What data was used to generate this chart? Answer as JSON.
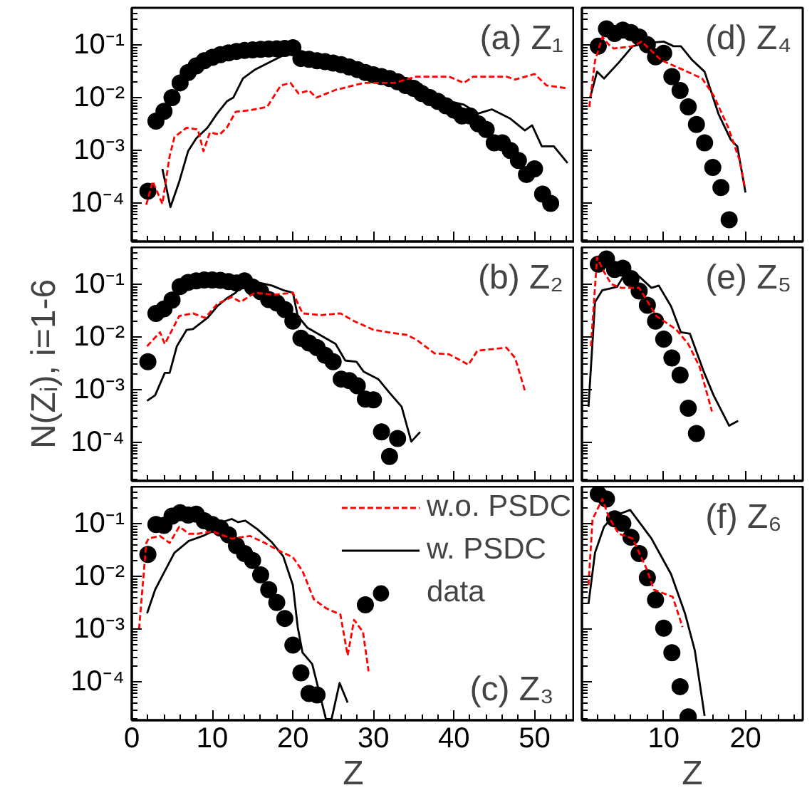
{
  "chart_data": [
    {
      "type": "line",
      "log": true,
      "grid": false,
      "tick_labels": "y",
      "xlim": [
        0,
        55
      ],
      "xticks": [
        0,
        10,
        20,
        30,
        40,
        50
      ],
      "ylim": [
        1.9e-05,
        0.5
      ],
      "yticks": [
        {
          "value": 0.1,
          "label": "10⁻¹"
        },
        {
          "value": 0.01,
          "label": "10⁻²"
        },
        {
          "value": 0.001,
          "label": "10⁻³"
        },
        {
          "value": 0.0001,
          "label": "10⁻⁴"
        }
      ],
      "annotations": [
        "(a) Z₁"
      ],
      "series": [
        {
          "color": "#ff0000",
          "line_style": "dashed",
          "x": [
            1.8,
            2.6,
            3.8,
            4.7,
            5.3,
            6.8,
            8.2,
            8.9,
            9.7,
            10.9,
            11.8,
            12.9,
            14.7,
            16.8,
            18.5,
            19.7,
            20.7,
            22,
            22.9,
            25.3,
            28.8,
            32.6,
            35.3,
            39.4,
            41.2,
            42.4,
            44.7,
            46.5,
            47.6,
            50,
            51.5,
            54.1
          ],
          "values": [
            9.4e-05,
            0.00026,
            9.8e-05,
            0.00078,
            0.0018,
            0.0027,
            0.0025,
            0.00097,
            0.0022,
            0.002,
            0.0027,
            0.0054,
            0.0058,
            0.0067,
            0.017,
            0.019,
            0.012,
            0.0137,
            0.01,
            0.014,
            0.019,
            0.019,
            0.025,
            0.025,
            0.019,
            0.025,
            0.025,
            0.025,
            0.022,
            0.028,
            0.017,
            0.015
          ]
        },
        {
          "color": "#000000",
          "line_style": "solid",
          "x": [
            3.8,
            4.8,
            5.9,
            7,
            8,
            9.4,
            10.6,
            11.8,
            12.6,
            13.8,
            15.3,
            17.6,
            18.8,
            20,
            22,
            26,
            30,
            32.4,
            35.3,
            35.9,
            37,
            38.8,
            41.2,
            43,
            44.7,
            47,
            48.8,
            49.7,
            50.9,
            52.4,
            54.1
          ],
          "values": [
            0.00045,
            8.5e-05,
            0.00026,
            0.00098,
            0.0017,
            0.0027,
            0.005,
            0.0085,
            0.01,
            0.023,
            0.034,
            0.051,
            0.063,
            0.085,
            0.05,
            0.04,
            0.027,
            0.019,
            0.017,
            0.018,
            0.012,
            0.009,
            0.0074,
            0.005,
            0.006,
            0.004,
            0.0024,
            0.003,
            0.0012,
            0.0012,
            0.00058
          ]
        },
        {
          "type": "scatter",
          "marker": "circle",
          "color": "#000000",
          "x": [
            2,
            3,
            4,
            5,
            6,
            7,
            8,
            9,
            10,
            11,
            12,
            13,
            14,
            15,
            16,
            17,
            18,
            19,
            20,
            21,
            22,
            23,
            24,
            25,
            26,
            27,
            28,
            29,
            30,
            31,
            32,
            33,
            34,
            35,
            36,
            37,
            38,
            39,
            40,
            41,
            42,
            43,
            44,
            45,
            46,
            47,
            48,
            49,
            50,
            51,
            52
          ],
          "values": [
            0.00017,
            0.0036,
            0.0055,
            0.01,
            0.019,
            0.03,
            0.04,
            0.05,
            0.058,
            0.065,
            0.07,
            0.075,
            0.078,
            0.08,
            0.082,
            0.083,
            0.084,
            0.085,
            0.088,
            0.055,
            0.053,
            0.05,
            0.048,
            0.045,
            0.042,
            0.038,
            0.034,
            0.03,
            0.027,
            0.025,
            0.023,
            0.02,
            0.017,
            0.015,
            0.012,
            0.01,
            0.0085,
            0.007,
            0.0058,
            0.0045,
            0.0045,
            0.0032,
            0.0025,
            0.0014,
            0.0014,
            0.001,
            0.00065,
            0.00035,
            0.00045,
            0.00015,
            0.0001
          ]
        }
      ]
    },
    {
      "type": "line",
      "log": true,
      "grid": false,
      "tick_labels": false,
      "xlim": [
        0,
        27
      ],
      "xticks": [
        10,
        20
      ],
      "ylim": [
        1.9e-05,
        0.5
      ],
      "yticks": [
        0.1,
        0.01,
        0.001,
        0.0001
      ],
      "annotations": [
        "(d) Z₄"
      ],
      "series": [
        {
          "color": "#ff0000",
          "line_style": "dashed",
          "x": [
            0.9,
            1.6,
            2.5,
            3.3,
            3.9,
            6.2,
            7.3,
            9.7,
            12.3,
            14.7,
            16.1,
            17.9,
            19.3,
            19.9
          ],
          "values": [
            0.0067,
            0.05,
            0.14,
            0.1,
            0.085,
            0.094,
            0.115,
            0.051,
            0.034,
            0.023,
            0.011,
            0.0027,
            0.00064,
            0.00021
          ]
        },
        {
          "color": "#000000",
          "line_style": "solid",
          "x": [
            1,
            1.85,
            2.7,
            4.5,
            6.2,
            7.9,
            10,
            11.2,
            12.1,
            13.5,
            15,
            16.7,
            18.2,
            19,
            20
          ],
          "values": [
            0.01,
            0.031,
            0.023,
            0.046,
            0.094,
            0.108,
            0.115,
            0.094,
            0.094,
            0.051,
            0.031,
            0.0049,
            0.0016,
            0.0012,
            0.00016
          ]
        },
        {
          "type": "scatter",
          "marker": "circle",
          "color": "#000000",
          "x": [
            2,
            3,
            4,
            5,
            6,
            7,
            8,
            9,
            10,
            11,
            12,
            13,
            14,
            15,
            16,
            17,
            18
          ],
          "values": [
            0.094,
            0.2,
            0.163,
            0.19,
            0.17,
            0.14,
            0.1,
            0.059,
            0.069,
            0.025,
            0.0137,
            0.0067,
            0.0031,
            0.0014,
            0.00048,
            0.0002,
            4.9e-05
          ]
        }
      ]
    },
    {
      "type": "line",
      "log": true,
      "grid": false,
      "tick_labels": "y",
      "xlim": [
        0,
        55
      ],
      "xticks": [
        0,
        10,
        20,
        30,
        40,
        50
      ],
      "ylim": [
        1.9e-05,
        0.5
      ],
      "yticks": [
        {
          "value": 0.1,
          "label": "10⁻¹"
        },
        {
          "value": 0.01,
          "label": "10⁻²"
        },
        {
          "value": 0.001,
          "label": "10⁻³"
        },
        {
          "value": 0.0001,
          "label": "10⁻⁴"
        }
      ],
      "ylabel": "N(Zᵢ), i=1-6",
      "annotations": [
        "(b) Z₂"
      ],
      "series": [
        {
          "color": "#ff0000",
          "line_style": "dashed",
          "x": [
            1.9,
            3.5,
            4.1,
            5.9,
            7.6,
            9.1,
            10.6,
            12.4,
            13.5,
            15.3,
            17.6,
            20,
            21.2,
            23.5,
            25.9,
            27.6,
            30,
            31.8,
            34.1,
            35.3,
            37.6,
            39.4,
            41.8,
            42.9,
            46.5,
            47.6,
            48.8
          ],
          "values": [
            0.0067,
            0.0123,
            0.0074,
            0.025,
            0.028,
            0.023,
            0.042,
            0.057,
            0.046,
            0.069,
            0.063,
            0.069,
            0.028,
            0.026,
            0.028,
            0.02,
            0.0137,
            0.0123,
            0.011,
            0.009,
            0.0049,
            0.0047,
            0.003,
            0.0055,
            0.0063,
            0.004,
            0.00097
          ]
        },
        {
          "color": "#000000",
          "line_style": "solid",
          "x": [
            1.9,
            2.9,
            4.1,
            4.7,
            5.6,
            6.8,
            7.6,
            9.4,
            10.6,
            11.8,
            12.9,
            14.1,
            15.6,
            17.4,
            18.8,
            20,
            20.6,
            21.8,
            23.8,
            25.3,
            26.5,
            27.9,
            28.8,
            30.6,
            32,
            33.5,
            34.7,
            35.8
          ],
          "values": [
            0.00062,
            0.00079,
            0.0021,
            0.0021,
            0.0067,
            0.0136,
            0.0142,
            0.023,
            0.038,
            0.054,
            0.069,
            0.108,
            0.108,
            0.094,
            0.077,
            0.069,
            0.025,
            0.015,
            0.01,
            0.0074,
            0.0036,
            0.0034,
            0.0022,
            0.0016,
            0.00088,
            0.00048,
            0.000105,
            0.00016
          ]
        },
        {
          "type": "scatter",
          "marker": "circle",
          "color": "#000000",
          "x": [
            2,
            3,
            4,
            5,
            6,
            7,
            8,
            9,
            10,
            11,
            12,
            13,
            14,
            15,
            16,
            17,
            18,
            19,
            20,
            21,
            22,
            23,
            24,
            25,
            26,
            27,
            28,
            29,
            30,
            31,
            32,
            33
          ],
          "values": [
            0.0034,
            0.028,
            0.034,
            0.05,
            0.09,
            0.108,
            0.115,
            0.12,
            0.12,
            0.118,
            0.112,
            0.105,
            0.115,
            0.088,
            0.072,
            0.051,
            0.044,
            0.033,
            0.02,
            0.0095,
            0.0077,
            0.0063,
            0.0045,
            0.0034,
            0.0016,
            0.0015,
            0.0012,
            0.00067,
            0.00065,
            0.00016,
            5.5e-05,
            0.00012
          ]
        }
      ]
    },
    {
      "type": "line",
      "log": true,
      "grid": false,
      "tick_labels": false,
      "xlim": [
        0,
        27
      ],
      "xticks": [
        10,
        20
      ],
      "ylim": [
        1.9e-05,
        0.5
      ],
      "yticks": [
        0.1,
        0.01,
        0.001,
        0.0001
      ],
      "annotations": [
        "(e) Z₅"
      ],
      "series": [
        {
          "color": "#ff0000",
          "line_style": "dashed",
          "x": [
            1.1,
            1.85,
            2.7,
            3.6,
            4.8,
            7,
            9.1,
            11.5,
            13,
            14.4,
            15.9
          ],
          "values": [
            0.0067,
            0.32,
            0.17,
            0.1,
            0.085,
            0.085,
            0.025,
            0.014,
            0.0074,
            0.0027,
            0.00039
          ]
        },
        {
          "color": "#000000",
          "line_style": "solid",
          "x": [
            0.8,
            1.6,
            2.5,
            3.3,
            4.3,
            5.3,
            7,
            8.5,
            9.4,
            10.9,
            12.1,
            13.2,
            14.9,
            16.1,
            18,
            19.1
          ],
          "values": [
            0.00048,
            0.046,
            0.077,
            0.082,
            0.089,
            0.16,
            0.14,
            0.085,
            0.094,
            0.038,
            0.0123,
            0.0116,
            0.0022,
            0.00079,
            0.00021,
            0.00026
          ]
        },
        {
          "type": "scatter",
          "marker": "circle",
          "color": "#000000",
          "x": [
            2,
            3,
            4,
            5,
            6,
            7,
            8,
            9,
            10,
            11,
            12,
            13,
            14
          ],
          "values": [
            0.24,
            0.3,
            0.19,
            0.2,
            0.128,
            0.074,
            0.04,
            0.02,
            0.0091,
            0.004,
            0.0019,
            0.00045,
            0.00015
          ]
        }
      ]
    },
    {
      "type": "line",
      "log": true,
      "grid": false,
      "legend": "top right",
      "xlim": [
        0,
        55
      ],
      "xticks": [
        0,
        10,
        20,
        30,
        40,
        50
      ],
      "ylim": [
        1.9e-05,
        0.5
      ],
      "yticks": [
        {
          "value": 0.1,
          "label": "10⁻¹"
        },
        {
          "value": 0.01,
          "label": "10⁻²"
        },
        {
          "value": 0.001,
          "label": "10⁻³"
        },
        {
          "value": 0.0001,
          "label": "10⁻⁴"
        }
      ],
      "xlabel": "Z",
      "annotations": [
        "(c)  Z₃"
      ],
      "series": [
        {
          "name": "w.o. PSDC",
          "color": "#ff0000",
          "line_style": "dashed",
          "x": [
            0.9,
            1.8,
            2.1,
            3.5,
            4.7,
            5.9,
            7.1,
            8.2,
            10,
            12.4,
            14.7,
            16.5,
            18.2,
            20,
            21.2,
            22.6,
            24.1,
            25.9,
            26.8,
            27.6,
            28.7,
            29.4
          ],
          "values": [
            0.001,
            0.043,
            0.052,
            0.058,
            0.043,
            0.087,
            0.064,
            0.064,
            0.071,
            0.052,
            0.058,
            0.043,
            0.031,
            0.023,
            0.0126,
            0.0037,
            0.0025,
            0.0019,
            0.00032,
            0.0015,
            0.00089,
            0.00016
          ]
        },
        {
          "name": "w. PSDC",
          "color": "#000000",
          "line_style": "solid",
          "x": [
            1.9,
            2.9,
            3.8,
            5.3,
            7.1,
            8.8,
            10,
            11.2,
            12.4,
            13.2,
            14.1,
            15.6,
            17.4,
            18.8,
            20,
            20.6,
            21.2,
            22.4,
            23.5,
            24.1,
            24.8,
            25.8,
            26.8
          ],
          "values": [
            0.002,
            0.0056,
            0.0103,
            0.028,
            0.047,
            0.058,
            0.071,
            0.106,
            0.122,
            0.106,
            0.113,
            0.078,
            0.044,
            0.024,
            0.0068,
            0.0011,
            0.00036,
            0.00022,
            4.7e-05,
            2e-05,
            2e-05,
            9.6e-05,
            4.1e-05
          ]
        },
        {
          "name": "data",
          "type": "scatter",
          "marker": "circle",
          "color": "#000000",
          "x": [
            2,
            3,
            4,
            5,
            6,
            7,
            8,
            9,
            10,
            11,
            12,
            13,
            14,
            15,
            16,
            17,
            18,
            19,
            20,
            21,
            22,
            23,
            29
          ],
          "values": [
            0.026,
            0.096,
            0.092,
            0.138,
            0.16,
            0.144,
            0.15,
            0.113,
            0.096,
            0.082,
            0.061,
            0.038,
            0.027,
            0.02,
            0.0107,
            0.0056,
            0.0032,
            0.0016,
            0.0005,
            0.00015,
            6.1e-05,
            5.7e-05,
            0.0029
          ]
        }
      ]
    },
    {
      "type": "line",
      "log": true,
      "grid": false,
      "tick_labels": "x",
      "xlim": [
        0,
        27
      ],
      "xticks": [
        10,
        20
      ],
      "ylim": [
        1.9e-05,
        0.5
      ],
      "yticks": [
        0.1,
        0.01,
        0.001,
        0.0001
      ],
      "xlabel": "Z",
      "annotations": [
        "(f)  Z₆"
      ],
      "series": [
        {
          "color": "#ff0000",
          "line_style": "dashed",
          "x": [
            0.8,
            1.3,
            2.5,
            3.3,
            4.5,
            6.2,
            7.9,
            8.8,
            11.1,
            12.3
          ],
          "values": [
            0.0068,
            0.12,
            0.29,
            0.13,
            0.064,
            0.052,
            0.014,
            0.0056,
            0.0041,
            0.0011
          ]
        },
        {
          "color": "#000000",
          "line_style": "solid",
          "x": [
            0.8,
            1.6,
            2.7,
            3.9,
            4.5,
            5.9,
            8.5,
            10.9,
            12.6,
            13.8,
            15
          ],
          "values": [
            0.003,
            0.028,
            0.087,
            0.14,
            0.15,
            0.18,
            0.052,
            0.011,
            0.002,
            0.0004,
            2.3e-05
          ]
        },
        {
          "type": "scatter",
          "marker": "circle",
          "color": "#000000",
          "x": [
            2,
            3,
            4,
            5,
            6,
            7,
            8,
            9,
            10,
            11,
            12,
            13
          ],
          "values": [
            0.36,
            0.29,
            0.123,
            0.1,
            0.055,
            0.027,
            0.0094,
            0.0036,
            0.00105,
            0.00036,
            8.2e-05,
            2.2e-05
          ]
        }
      ]
    }
  ]
}
